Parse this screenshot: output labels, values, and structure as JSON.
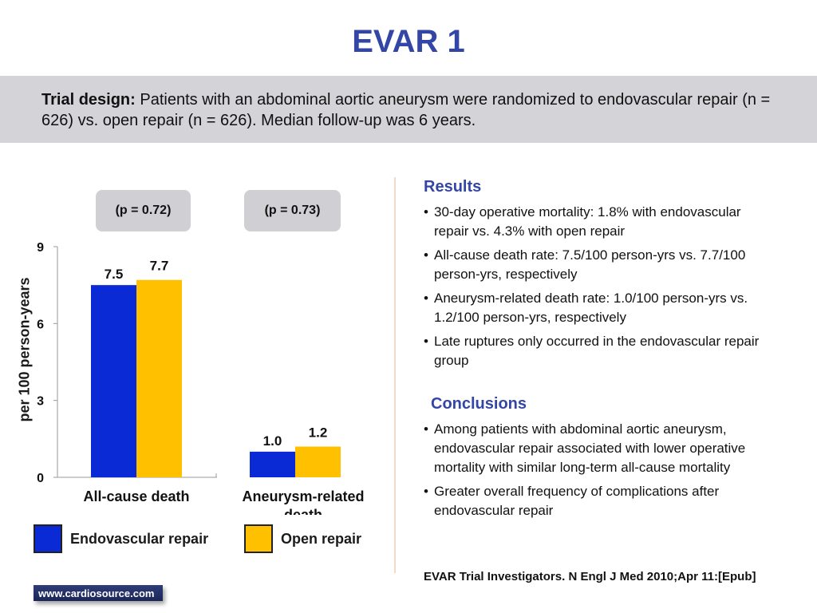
{
  "title": "EVAR 1",
  "trial_design": {
    "label": "Trial design:",
    "text": "Patients with an abdominal aortic aneurysm were randomized to endovascular repair (n = 626) vs. open repair (n = 626). Median follow-up was 6 years."
  },
  "p_values": [
    "(p = 0.72)",
    "(p = 0.73)"
  ],
  "colors": {
    "endovascular": "#0a2ad6",
    "open": "#ffc000",
    "heading": "#3346a6"
  },
  "chart_data": {
    "type": "bar",
    "categories": [
      "All-cause death",
      "Aneurysm-related death"
    ],
    "category_lines": [
      [
        "All-cause death"
      ],
      [
        "Aneurysm-related",
        "death"
      ]
    ],
    "series": [
      {
        "name": "Endovascular repair",
        "values": [
          7.5,
          1.0
        ],
        "labels": [
          "7.5",
          "1.0"
        ],
        "color": "#0a2ad6"
      },
      {
        "name": "Open repair",
        "values": [
          7.7,
          1.2
        ],
        "labels": [
          "7.7",
          "1.2"
        ],
        "color": "#ffc000"
      }
    ],
    "ylabel": "per 100 person-years",
    "ylim": [
      0,
      9
    ],
    "yticks": [
      0,
      3,
      6,
      9
    ],
    "legend_placement": "bottom"
  },
  "legend": {
    "endovascular": "Endovascular repair",
    "open": "Open repair"
  },
  "results": {
    "heading": "Results",
    "items": [
      "30-day operative mortality: 1.8% with endovascular repair vs. 4.3% with open repair",
      "All-cause death rate: 7.5/100 person-yrs vs. 7.7/100 person-yrs, respectively",
      "Aneurysm-related death rate: 1.0/100 person-yrs vs. 1.2/100 person-yrs, respectively",
      "Late ruptures only occurred in the endovascular repair group"
    ]
  },
  "conclusions": {
    "heading": "Conclusions",
    "items": [
      "Among patients with abdominal aortic aneurysm, endovascular repair associated with lower operative mortality with similar long-term all-cause mortality",
      "Greater overall frequency of complications after endovascular repair"
    ]
  },
  "citation": "EVAR Trial Investigators. N Engl J Med 2010;Apr 11:[Epub]",
  "footer": "www.cardiosource.com"
}
